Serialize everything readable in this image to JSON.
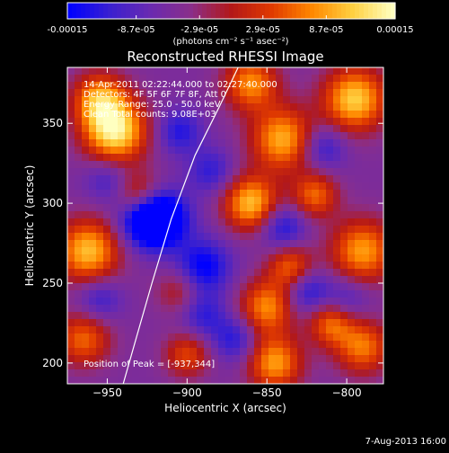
{
  "chart_data": {
    "type": "heatmap",
    "title": "Reconstructed RHESSI Image",
    "xlabel": "Heliocentric X (arcsec)",
    "ylabel": "Heliocentric Y (arcsec)",
    "xlim": [
      -975,
      -777
    ],
    "ylim": [
      187,
      385
    ],
    "x_ticks": [
      -950,
      -900,
      -850,
      -800
    ],
    "x_tick_labels": [
      "−950",
      "−900",
      "−850",
      "−800"
    ],
    "y_ticks": [
      200,
      250,
      300,
      350
    ],
    "y_tick_labels": [
      "200",
      "250",
      "300",
      "350"
    ],
    "colorbar": {
      "range": [
        -0.00015,
        0.00015
      ],
      "ticks": [
        -0.00015,
        -8.7e-05,
        -2.9e-05,
        2.9e-05,
        8.7e-05,
        0.00015
      ],
      "tick_labels": [
        "-0.00015",
        "-8.7e-05",
        "-2.9e-05",
        "2.9e-05",
        "8.7e-05",
        "0.00015"
      ],
      "unit_label": "(photons cm⁻² s⁻¹ asec⁻²)",
      "colors": [
        "#0000ff",
        "#3a20d0",
        "#6a2ab0",
        "#8a2e8a",
        "#b31818",
        "#e03a00",
        "#ff8800",
        "#ffd040",
        "#ffffc0"
      ]
    },
    "annotations": {
      "time_range": "14-Apr-2011 02:22:44.000 to 02:27:40.000",
      "detectors": "Detectors: 4F 5F 6F 7F 8F, Att 0",
      "energy": "Energy Range: 25.0 - 50.0 keV",
      "clean": "Clean     Total counts: 9.08E+03",
      "peak": "Position of Peak = [-937,344]"
    },
    "limb_curve": [
      [
        -940,
        187
      ],
      [
        -932,
        215
      ],
      [
        -922,
        250
      ],
      [
        -910,
        290
      ],
      [
        -895,
        330
      ],
      [
        -880,
        360
      ],
      [
        -868,
        385
      ]
    ],
    "blobs": [
      {
        "x": -945,
        "y": 345,
        "amp": 1.0,
        "r": 14
      },
      {
        "x": -955,
        "y": 365,
        "amp": 0.7,
        "r": 12
      },
      {
        "x": -962,
        "y": 270,
        "amp": 0.85,
        "r": 14
      },
      {
        "x": -965,
        "y": 215,
        "amp": 0.6,
        "r": 12
      },
      {
        "x": -930,
        "y": 305,
        "amp": 0.55,
        "r": 10
      },
      {
        "x": -900,
        "y": 205,
        "amp": 0.5,
        "r": 10
      },
      {
        "x": -860,
        "y": 300,
        "amp": 0.85,
        "r": 12
      },
      {
        "x": -840,
        "y": 340,
        "amp": 0.8,
        "r": 14
      },
      {
        "x": -860,
        "y": 375,
        "amp": 0.7,
        "r": 12
      },
      {
        "x": -850,
        "y": 235,
        "amp": 0.7,
        "r": 12
      },
      {
        "x": -835,
        "y": 260,
        "amp": 0.6,
        "r": 10
      },
      {
        "x": -845,
        "y": 200,
        "amp": 0.75,
        "r": 12
      },
      {
        "x": -795,
        "y": 365,
        "amp": 0.9,
        "r": 14
      },
      {
        "x": -790,
        "y": 270,
        "amp": 0.75,
        "r": 14
      },
      {
        "x": -790,
        "y": 210,
        "amp": 0.65,
        "r": 12
      },
      {
        "x": -820,
        "y": 305,
        "amp": 0.6,
        "r": 10
      },
      {
        "x": -810,
        "y": 225,
        "amp": 0.6,
        "r": 10
      },
      {
        "x": -905,
        "y": 245,
        "amp": 0.35,
        "r": 10
      },
      {
        "x": -915,
        "y": 290,
        "amp": -0.6,
        "r": 12
      },
      {
        "x": -925,
        "y": 290,
        "amp": -0.75,
        "r": 12
      },
      {
        "x": -890,
        "y": 260,
        "amp": -0.55,
        "r": 12
      },
      {
        "x": -905,
        "y": 345,
        "amp": -0.4,
        "r": 10
      },
      {
        "x": -885,
        "y": 320,
        "amp": -0.35,
        "r": 10
      },
      {
        "x": -840,
        "y": 285,
        "amp": -0.45,
        "r": 10
      },
      {
        "x": -825,
        "y": 245,
        "amp": -0.45,
        "r": 10
      },
      {
        "x": -815,
        "y": 335,
        "amp": -0.4,
        "r": 10
      },
      {
        "x": -890,
        "y": 230,
        "amp": -0.35,
        "r": 10
      },
      {
        "x": -950,
        "y": 315,
        "amp": -0.3,
        "r": 10
      },
      {
        "x": -955,
        "y": 240,
        "amp": -0.35,
        "r": 10
      },
      {
        "x": -870,
        "y": 215,
        "amp": -0.4,
        "r": 10
      },
      {
        "x": -800,
        "y": 240,
        "amp": -0.3,
        "r": 10
      }
    ]
  },
  "footer": {
    "timestamp": "7-Aug-2013 16:00"
  }
}
